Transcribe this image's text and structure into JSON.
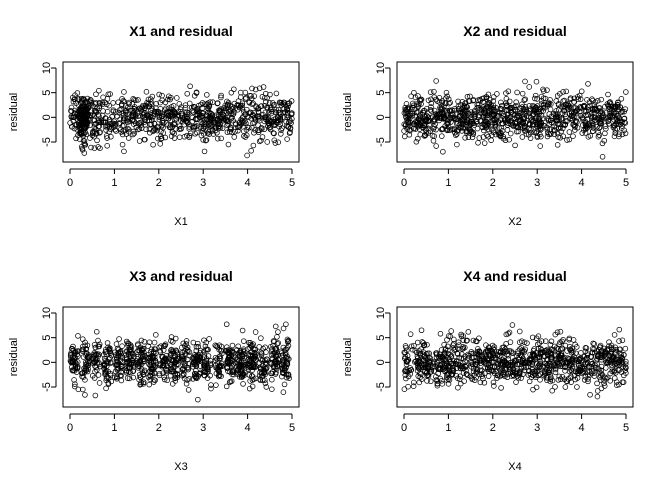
{
  "chart_data": [
    {
      "type": "scatter",
      "title": "X1 and residual",
      "xlabel": "X1",
      "ylabel": "residual",
      "xlim": [
        0,
        5
      ],
      "ylim": [
        -8,
        10
      ],
      "xticks": [
        0,
        1,
        2,
        3,
        4,
        5
      ],
      "yticks": [
        -5,
        0,
        5,
        10
      ],
      "grid": false,
      "marker": "open-circle",
      "n_points": 1000,
      "point_summary": {
        "x_range": [
          0,
          5
        ],
        "residual_center": 0,
        "residual_spread_sd": 2.3,
        "residual_range": [
          -8,
          10
        ]
      }
    },
    {
      "type": "scatter",
      "title": "X2 and residual",
      "xlabel": "X2",
      "ylabel": "residual",
      "xlim": [
        0,
        5
      ],
      "ylim": [
        -8,
        10
      ],
      "xticks": [
        0,
        1,
        2,
        3,
        4,
        5
      ],
      "yticks": [
        -5,
        0,
        5,
        10
      ],
      "grid": false,
      "marker": "open-circle",
      "n_points": 1000,
      "point_summary": {
        "x_range": [
          0,
          5
        ],
        "residual_center": 0,
        "residual_spread_sd": 2.3,
        "residual_range": [
          -8,
          10
        ]
      }
    },
    {
      "type": "scatter",
      "title": "X3 and residual",
      "xlabel": "X3",
      "ylabel": "residual",
      "xlim": [
        0,
        5
      ],
      "ylim": [
        -8,
        10
      ],
      "xticks": [
        0,
        1,
        2,
        3,
        4,
        5
      ],
      "yticks": [
        -5,
        0,
        5,
        10
      ],
      "grid": false,
      "marker": "open-circle",
      "n_points": 1000,
      "point_summary": {
        "x_range": [
          0,
          5
        ],
        "residual_center": 0,
        "residual_spread_sd": 2.3,
        "residual_range": [
          -8,
          10
        ]
      }
    },
    {
      "type": "scatter",
      "title": "X4 and residual",
      "xlabel": "X4",
      "ylabel": "residual",
      "xlim": [
        0,
        5
      ],
      "ylim": [
        -8,
        10
      ],
      "xticks": [
        0,
        1,
        2,
        3,
        4,
        5
      ],
      "yticks": [
        -5,
        0,
        5,
        10
      ],
      "grid": false,
      "marker": "open-circle",
      "n_points": 1000,
      "point_summary": {
        "x_range": [
          0,
          5
        ],
        "residual_center": 0,
        "residual_spread_sd": 2.3,
        "residual_range": [
          -8,
          10
        ]
      }
    }
  ]
}
